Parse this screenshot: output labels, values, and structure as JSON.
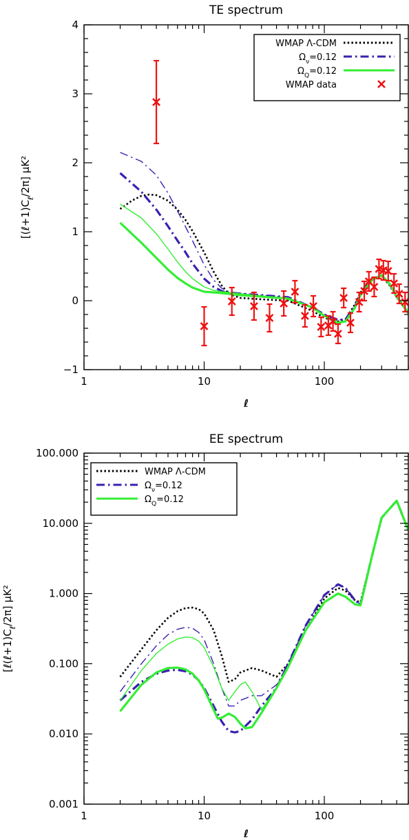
{
  "chart_data": [
    {
      "type": "line",
      "title": "TE spectrum",
      "xlabel": "ℓ",
      "ylabel": "[(ℓ+1)C_ℓ/2π] μK²",
      "xscale": "log",
      "xlim": [
        1,
        500
      ],
      "ylim": [
        -1,
        4
      ],
      "xticks": [
        1,
        10,
        100
      ],
      "xtick_labels": [
        "1",
        "10",
        "100"
      ],
      "yticks": [
        -1,
        0,
        1,
        2,
        3,
        4
      ],
      "ytick_labels": [
        "−1",
        "0",
        "1",
        "2",
        "3",
        "4"
      ],
      "legend_position": "top-right",
      "series": [
        {
          "name": "WMAP Λ-CDM",
          "style": "dotted",
          "color": "#000000",
          "width": 2.6,
          "x": [
            2,
            2.5,
            3,
            3.5,
            4,
            5,
            6,
            7,
            8,
            10,
            12,
            14,
            16,
            20,
            30,
            50,
            80,
            100,
            130,
            150,
            180,
            200,
            250,
            300,
            350,
            400,
            500
          ],
          "y": [
            1.33,
            1.45,
            1.52,
            1.54,
            1.53,
            1.45,
            1.32,
            1.17,
            1.01,
            0.7,
            0.42,
            0.22,
            0.1,
            0.04,
            0.02,
            0.0,
            -0.15,
            -0.25,
            -0.3,
            -0.27,
            -0.05,
            0.12,
            0.32,
            0.36,
            0.22,
            0.05,
            -0.18
          ]
        },
        {
          "name": "Ω_ν=0.12",
          "style": "dashdot",
          "color": "#3a1fb0",
          "width": 3.2,
          "x": [
            2,
            3,
            4,
            5,
            6,
            7,
            8,
            10,
            12,
            14,
            16,
            20,
            30,
            50,
            80,
            100,
            130,
            150,
            180,
            200,
            250,
            300,
            350,
            400,
            500
          ],
          "y": [
            1.85,
            1.58,
            1.32,
            1.08,
            0.87,
            0.7,
            0.54,
            0.32,
            0.2,
            0.14,
            0.11,
            0.1,
            0.08,
            0.05,
            -0.1,
            -0.2,
            -0.28,
            -0.27,
            -0.08,
            0.1,
            0.3,
            0.37,
            0.24,
            0.06,
            -0.18
          ]
        },
        {
          "name": "Ω_ν=0.12 (thin)",
          "style": "dashdot",
          "color": "#3a1fb0",
          "width": 1.4,
          "x": [
            2,
            3,
            4,
            5,
            6,
            7,
            8,
            10,
            12,
            14,
            16,
            20,
            30,
            50,
            80,
            100,
            130,
            150,
            180,
            200,
            250,
            300,
            350,
            400,
            500
          ],
          "y": [
            2.15,
            2.02,
            1.82,
            1.56,
            1.3,
            1.07,
            0.87,
            0.52,
            0.3,
            0.18,
            0.13,
            0.11,
            0.08,
            0.05,
            -0.1,
            -0.2,
            -0.28,
            -0.27,
            -0.08,
            0.1,
            0.3,
            0.37,
            0.24,
            0.06,
            -0.18
          ]
        },
        {
          "name": "Ω_Q=0.12",
          "style": "solid",
          "color": "#33ee33",
          "width": 3.2,
          "x": [
            2,
            3,
            4,
            5,
            6,
            7,
            8,
            10,
            12,
            14,
            16,
            20,
            30,
            50,
            80,
            100,
            130,
            150,
            180,
            200,
            250,
            300,
            350,
            400,
            500
          ],
          "y": [
            1.13,
            0.84,
            0.62,
            0.45,
            0.33,
            0.25,
            0.19,
            0.13,
            0.12,
            0.11,
            0.1,
            0.08,
            0.06,
            0.03,
            -0.1,
            -0.22,
            -0.32,
            -0.3,
            -0.1,
            0.08,
            0.3,
            0.37,
            0.24,
            0.06,
            -0.18
          ]
        },
        {
          "name": "Ω_Q=0.12 (thin)",
          "style": "solid",
          "color": "#33ee33",
          "width": 1.4,
          "x": [
            2,
            3,
            4,
            5,
            6,
            7,
            8,
            10,
            12,
            14,
            16,
            20,
            30,
            50,
            80,
            100,
            130,
            150,
            180,
            200,
            250,
            300,
            350,
            400,
            500
          ],
          "y": [
            1.4,
            1.2,
            0.97,
            0.75,
            0.56,
            0.42,
            0.32,
            0.2,
            0.15,
            0.13,
            0.12,
            0.1,
            0.07,
            0.03,
            -0.1,
            -0.22,
            -0.32,
            -0.3,
            -0.1,
            0.08,
            0.3,
            0.37,
            0.24,
            0.06,
            -0.18
          ]
        }
      ],
      "data_points": {
        "name": "WMAP data",
        "color": "#ee1111",
        "points": [
          {
            "x": 4,
            "y": 2.88,
            "err": 0.6
          },
          {
            "x": 10,
            "y": -0.37,
            "err": 0.28
          },
          {
            "x": 17,
            "y": -0.01,
            "err": 0.2
          },
          {
            "x": 26,
            "y": -0.08,
            "err": 0.2
          },
          {
            "x": 35,
            "y": -0.25,
            "err": 0.2
          },
          {
            "x": 46,
            "y": -0.04,
            "err": 0.18
          },
          {
            "x": 57,
            "y": 0.13,
            "err": 0.16
          },
          {
            "x": 69,
            "y": -0.22,
            "err": 0.16
          },
          {
            "x": 81,
            "y": -0.08,
            "err": 0.15
          },
          {
            "x": 94,
            "y": -0.38,
            "err": 0.14
          },
          {
            "x": 108,
            "y": -0.36,
            "err": 0.14
          },
          {
            "x": 118,
            "y": -0.3,
            "err": 0.14
          },
          {
            "x": 130,
            "y": -0.48,
            "err": 0.14
          },
          {
            "x": 145,
            "y": 0.04,
            "err": 0.14
          },
          {
            "x": 165,
            "y": -0.32,
            "err": 0.14
          },
          {
            "x": 195,
            "y": -0.02,
            "err": 0.14
          },
          {
            "x": 215,
            "y": 0.14,
            "err": 0.14
          },
          {
            "x": 235,
            "y": 0.28,
            "err": 0.14
          },
          {
            "x": 260,
            "y": 0.2,
            "err": 0.14
          },
          {
            "x": 285,
            "y": 0.46,
            "err": 0.14
          },
          {
            "x": 310,
            "y": 0.44,
            "err": 0.14
          },
          {
            "x": 340,
            "y": 0.43,
            "err": 0.14
          },
          {
            "x": 380,
            "y": 0.25,
            "err": 0.14
          },
          {
            "x": 420,
            "y": 0.1,
            "err": 0.14
          },
          {
            "x": 470,
            "y": -0.02,
            "err": 0.14
          }
        ]
      },
      "legend": [
        {
          "label": "WMAP Λ-CDM",
          "style": "dotted",
          "color": "#000000"
        },
        {
          "label": "Ω_ν=0.12",
          "style": "dashdot",
          "color": "#3a1fb0"
        },
        {
          "label": "Ω_Q=0.12",
          "style": "solid",
          "color": "#33ee33"
        },
        {
          "label": "WMAP data",
          "style": "cross",
          "color": "#ee1111"
        }
      ]
    },
    {
      "type": "line",
      "title": "EE spectrum",
      "xlabel": "ℓ",
      "ylabel": "[ℓ(ℓ+1)C_ℓ/2π] μK²",
      "xscale": "log",
      "yscale": "log",
      "xlim": [
        1,
        500
      ],
      "ylim": [
        0.001,
        100
      ],
      "xticks": [
        1,
        10,
        100
      ],
      "xtick_labels": [
        "1",
        "10",
        "100"
      ],
      "yticks": [
        0.001,
        0.01,
        0.1,
        1,
        10,
        100
      ],
      "ytick_labels": [
        "0.001",
        "0.010",
        "0.100",
        "1.000",
        "10.000",
        "100.000"
      ],
      "legend_position": "top-left",
      "series": [
        {
          "name": "WMAP Λ-CDM",
          "style": "dotted",
          "color": "#000000",
          "width": 2.6,
          "x": [
            2,
            3,
            4,
            5,
            6,
            7,
            8,
            9,
            10,
            12,
            14,
            16,
            18,
            20,
            25,
            30,
            40,
            50,
            70,
            100,
            130,
            150,
            180,
            200,
            250,
            300,
            400,
            500
          ],
          "y": [
            0.065,
            0.16,
            0.3,
            0.45,
            0.56,
            0.62,
            0.63,
            0.6,
            0.52,
            0.3,
            0.13,
            0.055,
            0.06,
            0.075,
            0.087,
            0.08,
            0.065,
            0.1,
            0.3,
            0.85,
            1.2,
            1.1,
            0.8,
            0.75,
            3.5,
            12,
            21,
            8
          ]
        },
        {
          "name": "Ω_ν=0.12",
          "style": "dashdot",
          "color": "#3a1fb0",
          "width": 3.2,
          "x": [
            2,
            3,
            4,
            5,
            6,
            7,
            8,
            9,
            10,
            12,
            14,
            16,
            18,
            20,
            25,
            30,
            40,
            50,
            70,
            100,
            130,
            150,
            180,
            200,
            250,
            300,
            400,
            500
          ],
          "y": [
            0.03,
            0.055,
            0.072,
            0.08,
            0.082,
            0.078,
            0.07,
            0.058,
            0.045,
            0.025,
            0.015,
            0.011,
            0.0105,
            0.011,
            0.016,
            0.025,
            0.045,
            0.1,
            0.35,
            0.95,
            1.35,
            1.2,
            0.8,
            0.7,
            3.5,
            12,
            21,
            8
          ]
        },
        {
          "name": "Ω_ν=0.12 (thin)",
          "style": "dashdot",
          "color": "#3a1fb0",
          "width": 1.4,
          "x": [
            2,
            3,
            4,
            5,
            6,
            7,
            8,
            9,
            10,
            12,
            14,
            16,
            18,
            20,
            25,
            30,
            40,
            50,
            70,
            100,
            130,
            150,
            180,
            200,
            250,
            300,
            400,
            500
          ],
          "y": [
            0.04,
            0.1,
            0.18,
            0.26,
            0.31,
            0.33,
            0.32,
            0.28,
            0.22,
            0.1,
            0.045,
            0.025,
            0.025,
            0.03,
            0.035,
            0.035,
            0.05,
            0.1,
            0.35,
            0.95,
            1.35,
            1.2,
            0.8,
            0.7,
            3.5,
            12,
            21,
            8
          ]
        },
        {
          "name": "Ω_Q=0.12",
          "style": "solid",
          "color": "#33ee33",
          "width": 3.2,
          "x": [
            2,
            3,
            4,
            5,
            6,
            7,
            8,
            9,
            10,
            12,
            13,
            14,
            16,
            18,
            20,
            22,
            25,
            30,
            40,
            50,
            70,
            100,
            130,
            150,
            180,
            200,
            250,
            300,
            400,
            500
          ],
          "y": [
            0.021,
            0.05,
            0.075,
            0.087,
            0.088,
            0.083,
            0.072,
            0.058,
            0.043,
            0.022,
            0.0165,
            0.017,
            0.0195,
            0.0175,
            0.014,
            0.012,
            0.0125,
            0.02,
            0.045,
            0.09,
            0.3,
            0.75,
            1.0,
            0.9,
            0.7,
            0.68,
            3.5,
            12,
            21,
            8
          ]
        },
        {
          "name": "Ω_Q=0.12 (thin)",
          "style": "solid",
          "color": "#33ee33",
          "width": 1.4,
          "x": [
            2,
            3,
            4,
            5,
            6,
            7,
            8,
            9,
            10,
            12,
            14,
            16,
            18,
            20,
            22,
            25,
            30,
            40,
            50,
            70,
            100,
            130,
            150,
            180,
            200,
            250,
            300,
            400,
            500
          ],
          "y": [
            0.03,
            0.08,
            0.14,
            0.19,
            0.225,
            0.24,
            0.235,
            0.21,
            0.17,
            0.09,
            0.045,
            0.03,
            0.04,
            0.05,
            0.055,
            0.04,
            0.022,
            0.045,
            0.09,
            0.3,
            0.75,
            1.0,
            0.9,
            0.7,
            0.68,
            3.5,
            12,
            21,
            8
          ]
        }
      ],
      "legend": [
        {
          "label": "WMAP Λ-CDM",
          "style": "dotted",
          "color": "#000000"
        },
        {
          "label": "Ω_ν=0.12",
          "style": "dashdot",
          "color": "#3a1fb0"
        },
        {
          "label": "Ω_Q=0.12",
          "style": "solid",
          "color": "#33ee33"
        }
      ]
    }
  ]
}
